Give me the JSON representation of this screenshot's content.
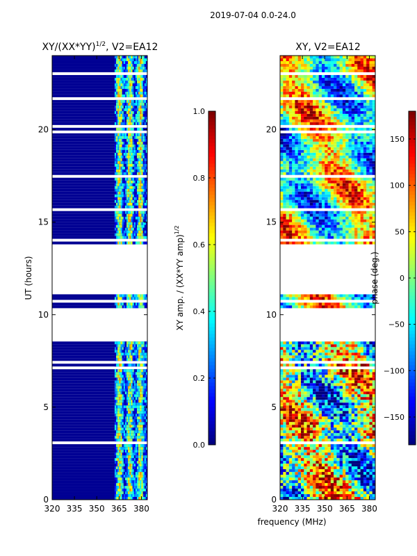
{
  "figure_title": "2019-07-04 0.0-24.0",
  "x_axis_label": "frequency (MHz)",
  "colors": {
    "jet": [
      "#00007f",
      "#0000ff",
      "#007fff",
      "#00ffff",
      "#7fff7f",
      "#ffff00",
      "#ff7f00",
      "#ff0000",
      "#7f0000"
    ],
    "empty": "#ffffff"
  },
  "chart_data": [
    {
      "id": "amp",
      "type": "heatmap",
      "title": "XY/(XX*YY)",
      "title_sup": "1/2",
      "title_suffix": ", V2=EA12",
      "xlabel": "",
      "ylabel": "UT (hours)",
      "xlim": [
        320,
        384
      ],
      "ylim": [
        0,
        24
      ],
      "x_ticks": [
        320,
        335,
        350,
        365,
        380
      ],
      "y_ticks": [
        0,
        5,
        10,
        15,
        20
      ],
      "data_gaps_hours": [
        [
          8.5,
          10.4
        ],
        [
          11.1,
          13.8
        ]
      ],
      "active_band_mhz": [
        362,
        384
      ],
      "colorbar": {
        "label": "XY amp. / (XX*YY amp)",
        "label_sup": "1/2",
        "ticks": [
          "0.0",
          "0.2",
          "0.4",
          "0.6",
          "0.8",
          "1.0"
        ],
        "range": [
          0,
          1
        ]
      }
    },
    {
      "id": "phase",
      "type": "heatmap",
      "title": "XY, V2=EA12",
      "xlabel": "frequency (MHz)",
      "ylabel": "",
      "xlim": [
        320,
        384
      ],
      "ylim": [
        0,
        24
      ],
      "x_ticks": [
        320,
        335,
        350,
        365,
        380
      ],
      "y_ticks": [
        0,
        5,
        10,
        15,
        20
      ],
      "data_gaps_hours": [
        [
          8.5,
          10.4
        ],
        [
          11.1,
          13.8
        ]
      ],
      "colorbar": {
        "label": "phase (deg.)",
        "ticks": [
          "150",
          "100",
          "50",
          "0",
          "−50",
          "−100",
          "−150"
        ],
        "tick_values": [
          150,
          100,
          50,
          0,
          -50,
          -100,
          -150
        ],
        "range": [
          -180,
          180
        ]
      }
    }
  ]
}
